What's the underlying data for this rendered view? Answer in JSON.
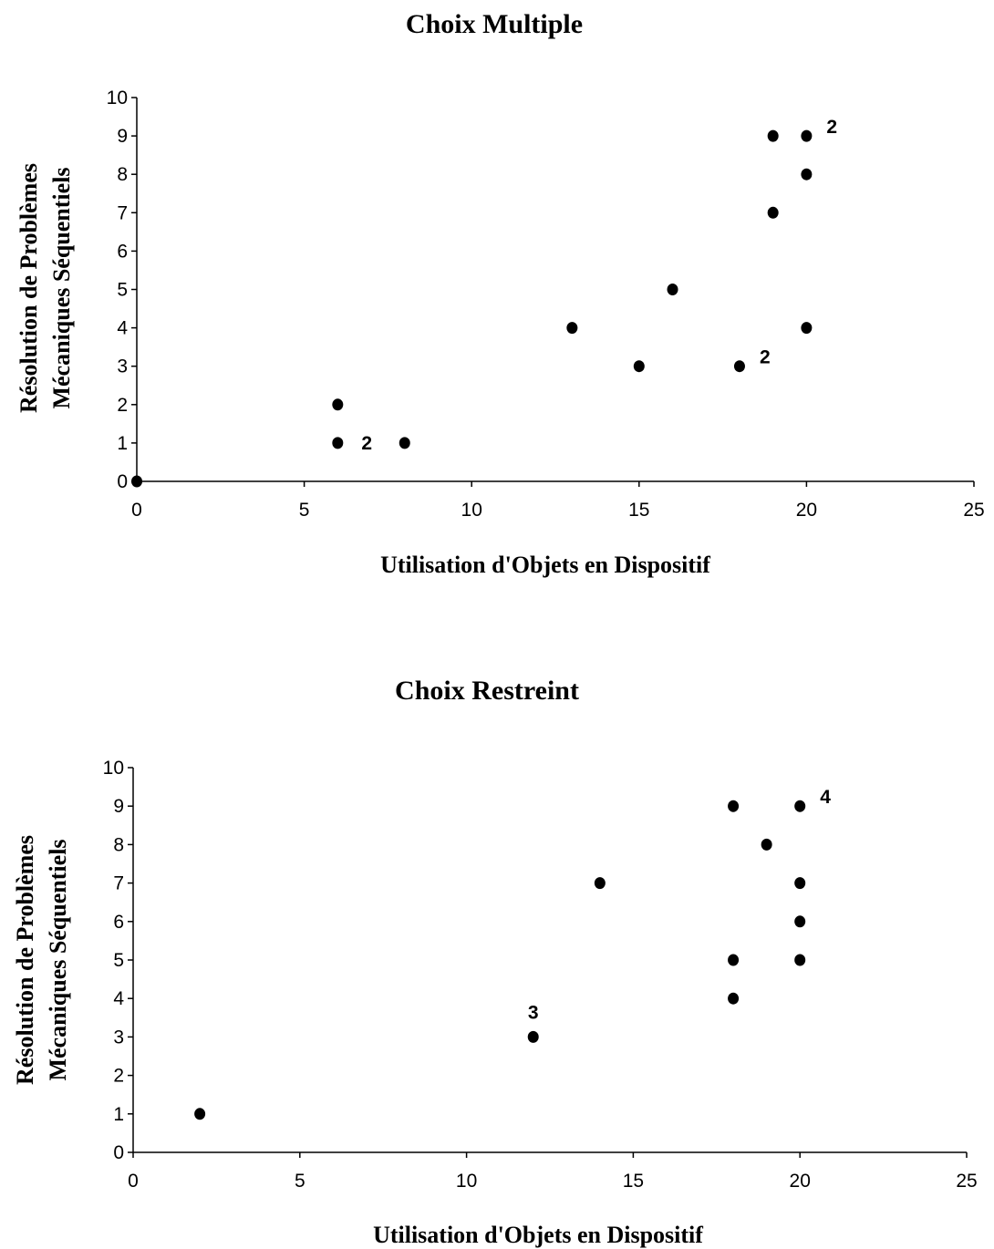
{
  "chart_data": [
    {
      "type": "scatter",
      "title": "Choix Multiple",
      "xlabel": "Utilisation d'Objets en Dispositif",
      "ylabel": [
        "Résolution de Problèmes",
        "Mécaniques Séquentiels"
      ],
      "xlim": [
        0,
        25
      ],
      "ylim": [
        0,
        10
      ],
      "xticks": [
        0,
        5,
        10,
        15,
        20,
        25
      ],
      "yticks": [
        0,
        1,
        2,
        3,
        4,
        5,
        6,
        7,
        8,
        9,
        10
      ],
      "grid": false,
      "marker_color": "#000000",
      "points": [
        {
          "x": 0,
          "y": 0
        },
        {
          "x": 6,
          "y": 1
        },
        {
          "x": 6,
          "y": 2
        },
        {
          "x": 8,
          "y": 1
        },
        {
          "x": 13,
          "y": 4
        },
        {
          "x": 15,
          "y": 3
        },
        {
          "x": 16,
          "y": 5
        },
        {
          "x": 18,
          "y": 3
        },
        {
          "x": 19,
          "y": 7
        },
        {
          "x": 19,
          "y": 9
        },
        {
          "x": 20,
          "y": 9
        },
        {
          "x": 20,
          "y": 8
        },
        {
          "x": 20,
          "y": 4
        }
      ],
      "annotations": [
        {
          "x": 6,
          "y": 1,
          "text": "2",
          "position": "right"
        },
        {
          "x": 18,
          "y": 3,
          "text": "2",
          "position": "upper-right"
        },
        {
          "x": 20,
          "y": 9,
          "text": "2",
          "position": "upper-right"
        }
      ]
    },
    {
      "type": "scatter",
      "title": "Choix Restreint",
      "xlabel": "Utilisation d'Objets en Dispositif",
      "ylabel": [
        "Résolution de Problèmes",
        "Mécaniques Séquentiels"
      ],
      "xlim": [
        0,
        25
      ],
      "ylim": [
        0,
        10
      ],
      "xticks": [
        0,
        5,
        10,
        15,
        20,
        25
      ],
      "yticks": [
        0,
        1,
        2,
        3,
        4,
        5,
        6,
        7,
        8,
        9,
        10
      ],
      "grid": false,
      "marker_color": "#000000",
      "points": [
        {
          "x": 2,
          "y": 1
        },
        {
          "x": 12,
          "y": 3
        },
        {
          "x": 14,
          "y": 7
        },
        {
          "x": 18,
          "y": 9
        },
        {
          "x": 18,
          "y": 5
        },
        {
          "x": 18,
          "y": 4
        },
        {
          "x": 19,
          "y": 8
        },
        {
          "x": 20,
          "y": 9
        },
        {
          "x": 20,
          "y": 7
        },
        {
          "x": 20,
          "y": 6
        },
        {
          "x": 20,
          "y": 5
        }
      ],
      "annotations": [
        {
          "x": 12,
          "y": 3,
          "text": "3",
          "position": "above"
        },
        {
          "x": 20,
          "y": 9,
          "text": "4",
          "position": "upper-right"
        }
      ]
    }
  ]
}
